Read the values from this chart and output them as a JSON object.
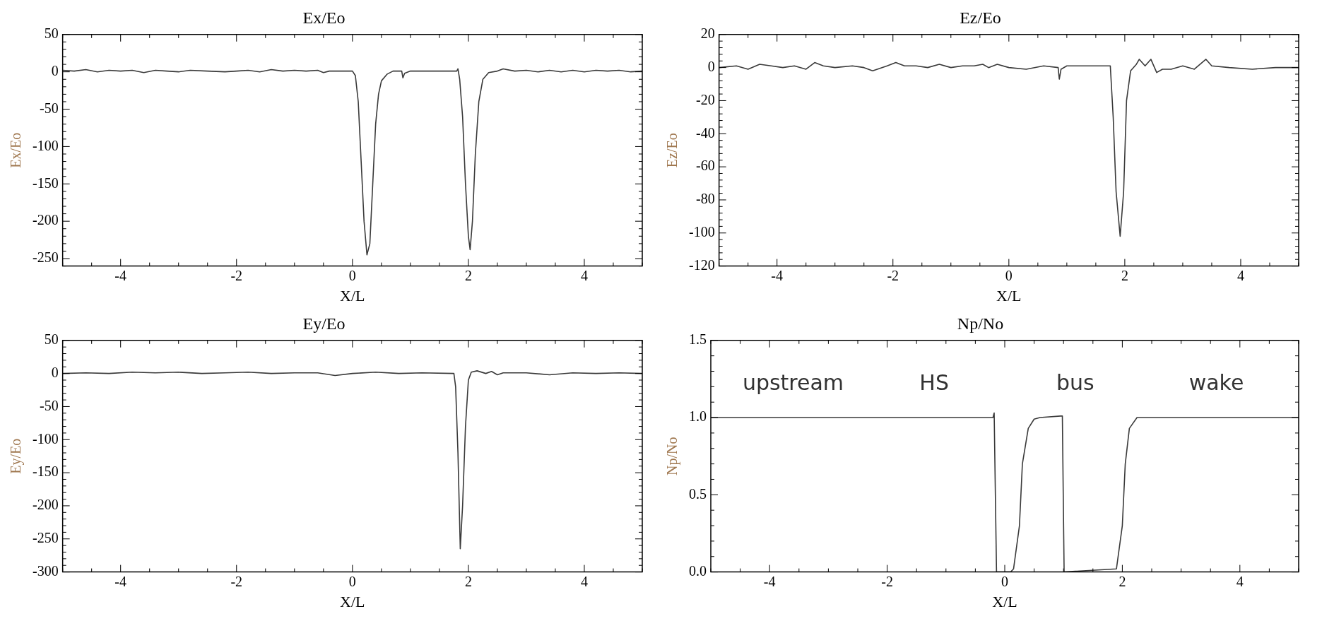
{
  "chart_data": [
    {
      "type": "line",
      "title": "Ex/Eo",
      "xlabel": "X/L",
      "ylabel": "Ex/Eo",
      "color": "#3a3a3a",
      "xlim": [
        -5,
        5
      ],
      "xticks": [
        -4,
        -2,
        0,
        2,
        4
      ],
      "ylim": [
        -260,
        50
      ],
      "yticks": [
        50,
        0,
        -50,
        -100,
        -150,
        -200,
        -250
      ],
      "x": [
        -5,
        -4.8,
        -4.6,
        -4.4,
        -4.2,
        -4,
        -3.8,
        -3.6,
        -3.4,
        -3.2,
        -3,
        -2.8,
        -2.5,
        -2.2,
        -2,
        -1.8,
        -1.6,
        -1.4,
        -1.2,
        -1,
        -0.8,
        -0.6,
        -0.5,
        -0.4,
        0,
        0.05,
        0.1,
        0.15,
        0.2,
        0.25,
        0.3,
        0.35,
        0.4,
        0.45,
        0.5,
        0.6,
        0.7,
        0.85,
        0.87,
        0.9,
        1,
        1.5,
        1.8,
        1.82,
        1.85,
        1.9,
        1.95,
        2,
        2.03,
        2.07,
        2.12,
        2.18,
        2.25,
        2.35,
        2.5,
        2.6,
        2.8,
        3,
        3.2,
        3.4,
        3.6,
        3.8,
        4,
        4.2,
        4.4,
        4.6,
        4.8,
        5
      ],
      "values": [
        2,
        1,
        3,
        0,
        2,
        1,
        2,
        -1,
        2,
        1,
        0,
        2,
        1,
        0,
        1,
        2,
        0,
        3,
        1,
        2,
        1,
        2,
        -1,
        1,
        1,
        -5,
        -40,
        -120,
        -200,
        -245,
        -230,
        -150,
        -70,
        -30,
        -12,
        -3,
        1,
        1,
        -8,
        -2,
        1,
        1,
        1,
        4,
        -10,
        -60,
        -150,
        -220,
        -238,
        -200,
        -110,
        -40,
        -10,
        -1,
        1,
        4,
        1,
        2,
        0,
        2,
        0,
        2,
        0,
        2,
        1,
        2,
        0,
        1
      ]
    },
    {
      "type": "line",
      "title": "Ez/Eo",
      "xlabel": "X/L",
      "ylabel": "Ez/Eo",
      "color": "#3a3a3a",
      "xlim": [
        -5,
        5
      ],
      "xticks": [
        -4,
        -2,
        0,
        2,
        4
      ],
      "ylim": [
        -120,
        20
      ],
      "yticks": [
        20,
        0,
        -20,
        -40,
        -60,
        -80,
        -100,
        -120
      ],
      "x": [
        -5,
        -4.7,
        -4.5,
        -4.3,
        -4.1,
        -3.9,
        -3.7,
        -3.5,
        -3.35,
        -3.2,
        -3,
        -2.7,
        -2.5,
        -2.35,
        -2.1,
        -1.95,
        -1.8,
        -1.6,
        -1.4,
        -1.2,
        -1,
        -0.8,
        -0.6,
        -0.45,
        -0.35,
        -0.2,
        0,
        0.3,
        0.6,
        0.85,
        0.87,
        0.9,
        1,
        1.75,
        1.8,
        1.85,
        1.92,
        1.98,
        2.03,
        2.1,
        2.2,
        2.25,
        2.35,
        2.45,
        2.55,
        2.65,
        2.8,
        3,
        3.2,
        3.4,
        3.5,
        3.8,
        4.2,
        4.6,
        5
      ],
      "values": [
        0,
        1,
        -1,
        2,
        1,
        0,
        1,
        -1,
        3,
        1,
        0,
        1,
        0,
        -2,
        1,
        3,
        1,
        1,
        0,
        2,
        0,
        1,
        1,
        2,
        0,
        2,
        0,
        -1,
        1,
        0,
        -7,
        -1,
        1,
        1,
        -30,
        -75,
        -102,
        -75,
        -20,
        -2,
        2,
        5,
        1,
        5,
        -3,
        -1,
        -1,
        1,
        -1,
        5,
        1,
        0,
        -1,
        0,
        0
      ]
    },
    {
      "type": "line",
      "title": "Ey/Eo",
      "xlabel": "X/L",
      "ylabel": "Ey/Eo",
      "color": "#3a3a3a",
      "xlim": [
        -5,
        5
      ],
      "xticks": [
        -4,
        -2,
        0,
        2,
        4
      ],
      "ylim": [
        -300,
        50
      ],
      "yticks": [
        50,
        0,
        -50,
        -100,
        -150,
        -200,
        -250,
        -300
      ],
      "x": [
        -5,
        -4.6,
        -4.2,
        -3.8,
        -3.4,
        -3,
        -2.6,
        -2.2,
        -1.8,
        -1.4,
        -1,
        -0.6,
        -0.3,
        0,
        0.4,
        0.8,
        1.2,
        1.75,
        1.78,
        1.82,
        1.86,
        1.9,
        1.95,
        2,
        2.05,
        2.15,
        2.3,
        2.4,
        2.5,
        2.6,
        3,
        3.4,
        3.8,
        4.2,
        4.6,
        5
      ],
      "values": [
        0,
        1,
        0,
        2,
        1,
        2,
        0,
        1,
        2,
        0,
        1,
        1,
        -3,
        0,
        2,
        0,
        1,
        0,
        -20,
        -120,
        -265,
        -200,
        -80,
        -10,
        2,
        4,
        0,
        3,
        -2,
        1,
        1,
        -2,
        1,
        0,
        1,
        0
      ]
    },
    {
      "type": "line",
      "title": "Np/No",
      "xlabel": "X/L",
      "ylabel": "Np/No",
      "color": "#3a3a3a",
      "xlim": [
        -5,
        5
      ],
      "xticks": [
        -4,
        -2,
        0,
        2,
        4
      ],
      "ylim": [
        0,
        1.5
      ],
      "yticks": [
        {
          "value": 0,
          "label": "0.0"
        },
        {
          "value": 0.5,
          "label": "0.5"
        },
        {
          "value": 1,
          "label": "1.0"
        },
        {
          "value": 1.5,
          "label": "1.5"
        }
      ],
      "x": [
        -5,
        -4,
        -3,
        -2,
        -1,
        -0.2,
        -0.18,
        -0.14,
        0.1,
        0.15,
        0.25,
        0.3,
        0.4,
        0.5,
        0.6,
        0.95,
        0.98,
        1.01,
        1.9,
        2,
        2.05,
        2.12,
        2.25,
        3,
        4,
        5
      ],
      "values": [
        1,
        1,
        1,
        1,
        1,
        1,
        1.03,
        0,
        0,
        0.02,
        0.3,
        0.7,
        0.93,
        0.99,
        1,
        1.01,
        1.01,
        0,
        0.02,
        0.3,
        0.7,
        0.93,
        1,
        1,
        1,
        1
      ],
      "annotations": [
        "upstream",
        "HS",
        "bus",
        "wake"
      ]
    }
  ]
}
